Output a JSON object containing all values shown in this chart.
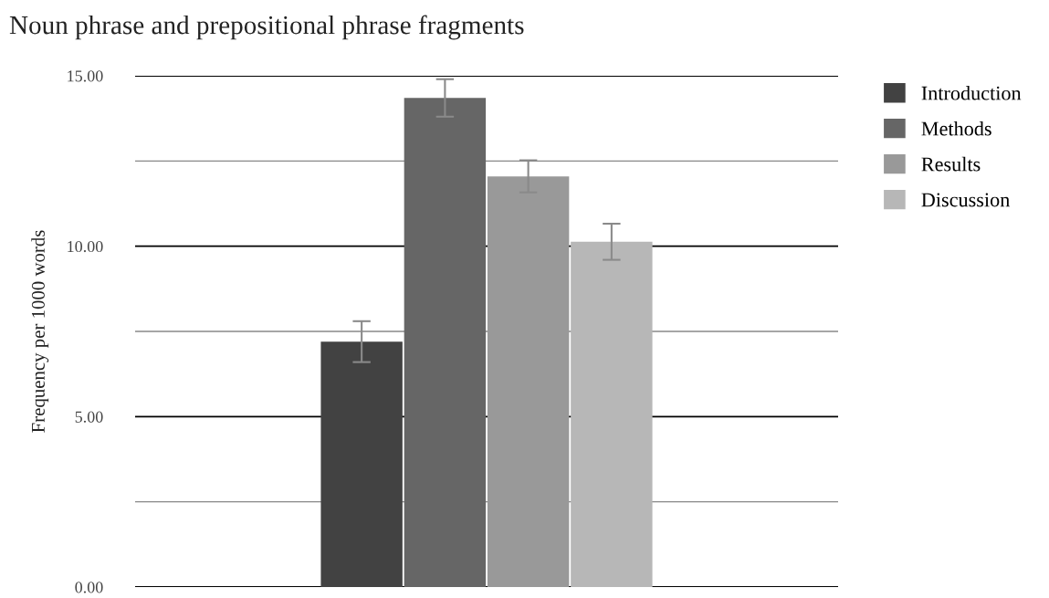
{
  "chart_data": {
    "type": "bar",
    "title": "Noun phrase and prepositional phrase fragments",
    "ylabel": "Frequency per 1000 words",
    "categories": [
      null
    ],
    "series": [
      {
        "name": "Introduction",
        "color": "#424242",
        "values": [
          7.2
        ],
        "errors": [
          0.6
        ]
      },
      {
        "name": "Methods",
        "color": "#666666",
        "values": [
          14.35
        ],
        "errors": [
          0.55
        ]
      },
      {
        "name": "Results",
        "color": "#999999",
        "values": [
          12.05
        ],
        "errors": [
          0.47
        ]
      },
      {
        "name": "Discussion",
        "color": "#b7b7b7",
        "values": [
          10.13
        ],
        "errors": [
          0.53
        ]
      }
    ],
    "ylim": [
      0,
      15
    ],
    "yticks": [
      {
        "value": 0,
        "label": "0.00"
      },
      {
        "value": 2.5,
        "label": null
      },
      {
        "value": 5,
        "label": "5.00"
      },
      {
        "value": 7.5,
        "label": null
      },
      {
        "value": 10,
        "label": "10.00"
      },
      {
        "value": 12.5,
        "label": null
      },
      {
        "value": 15,
        "label": "15.00"
      }
    ],
    "grid": "y",
    "legend": "top right"
  }
}
